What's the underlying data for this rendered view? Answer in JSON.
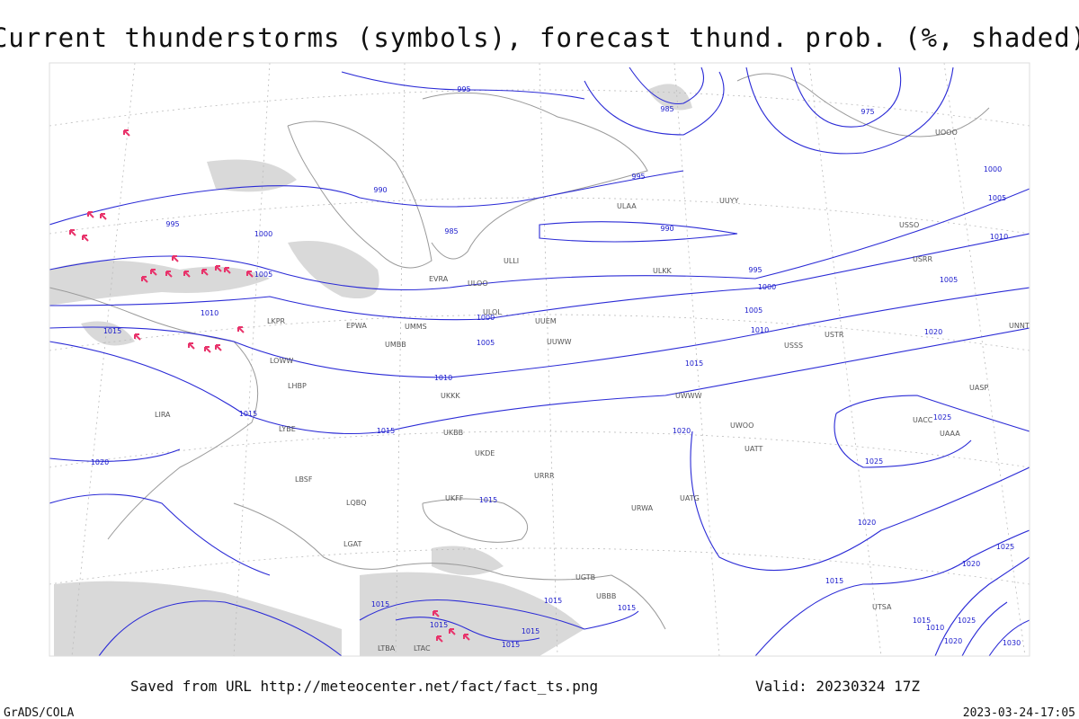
{
  "header": {
    "title": "Current thunderstorms (symbols), forecast thund. prob. (%, shaded)"
  },
  "footer": {
    "source": "Saved from URL http://meteocenter.net/fact/fact_ts.png",
    "valid": "Valid: 20230324 17Z",
    "credit": "GrADS/COLA",
    "timestamp": "2023-03-24-17:05"
  },
  "isobar_labels": [
    995,
    985,
    975,
    990,
    995,
    1000,
    1005,
    1010,
    995,
    1000,
    985,
    990,
    995,
    1000,
    1005,
    1005,
    1005,
    1010,
    1020,
    1010,
    1000,
    1005,
    1015,
    1015,
    1010,
    1015,
    1015,
    1020,
    1025,
    1025,
    1020,
    1015,
    1020,
    1015,
    1015,
    1015,
    1015,
    1015,
    1015,
    1015,
    1015,
    1010,
    1020,
    1025,
    1030,
    1020,
    1025
  ],
  "stations": [
    "ULAA",
    "ULLI",
    "EVRA",
    "ULOL",
    "UUEM",
    "UUWW",
    "UMMS",
    "UMBB",
    "EPWA",
    "LKPR",
    "LOWW",
    "LHBP",
    "LIRA",
    "LYBE",
    "LBSF",
    "LQBQ",
    "LGAT",
    "UKKK",
    "UKBB",
    "UKDE",
    "UKFF",
    "URRR",
    "URWA",
    "UATG",
    "UACC",
    "UAAA",
    "UASP",
    "UNNT",
    "USSS",
    "USTR",
    "UWWW",
    "UWOO",
    "UATT",
    "UUYY",
    "ULKK",
    "USRR",
    "USSO",
    "UOOO",
    "ULOO",
    "LTBA",
    "LTAC",
    "UGTB",
    "UBBB",
    "UTSA"
  ]
}
